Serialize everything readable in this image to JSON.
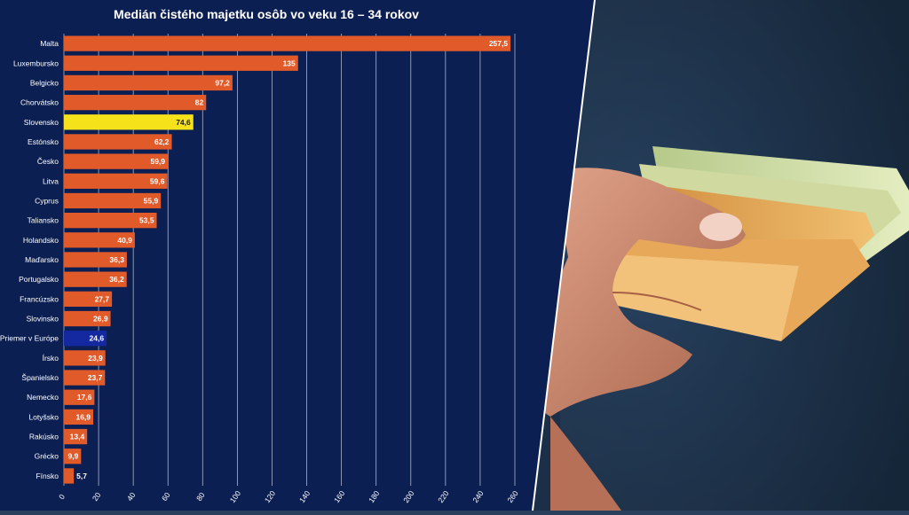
{
  "chart_data": {
    "type": "bar",
    "title": "Medián čistého majetku osôb vo veku 16 – 34 rokov",
    "xlabel": "",
    "ylabel": "",
    "orientation": "horizontal",
    "xlim": [
      0,
      260
    ],
    "x_ticks": [
      "0",
      "20",
      "40",
      "60",
      "80",
      "100",
      "120",
      "140",
      "160",
      "180",
      "200",
      "220",
      "240",
      "260"
    ],
    "grid": true,
    "categories": [
      "Malta",
      "Luxembursko",
      "Belgicko",
      "Chorvátsko",
      "Slovensko",
      "Estónsko",
      "Česko",
      "Litva",
      "Cyprus",
      "Taliansko",
      "Holandsko",
      "Maďarsko",
      "Portugalsko",
      "Francúzsko",
      "Slovinsko",
      "Priemer v Európe",
      "Írsko",
      "Španielsko",
      "Nemecko",
      "Lotyšsko",
      "Rakúsko",
      "Grécko",
      "Fínsko"
    ],
    "values": [
      257.5,
      135,
      97.2,
      82,
      74.6,
      62.2,
      59.9,
      59.6,
      55.9,
      53.5,
      40.9,
      36.3,
      36.2,
      27.7,
      26.9,
      24.6,
      23.9,
      23.7,
      17.6,
      16.9,
      13.4,
      9.9,
      5.7
    ],
    "value_labels": [
      "257,5",
      "135",
      "97,2",
      "82",
      "74,6",
      "62,2",
      "59,9",
      "59,6",
      "55,9",
      "53,5",
      "40,9",
      "36,3",
      "36,2",
      "27,7",
      "26,9",
      "24,6",
      "23,9",
      "23,7",
      "17,6",
      "16,9",
      "13,4",
      "9,9",
      "5,7"
    ],
    "colors": {
      "default": "#e05a2a",
      "highlight": {
        "Slovensko": "#f6e21a",
        "Priemer v Európe": "#1428a0"
      },
      "background": "#0c1f52",
      "grid": "#c9cfe0"
    }
  },
  "photo": {
    "subject": "hand-holding-euro-banknotes-image"
  }
}
